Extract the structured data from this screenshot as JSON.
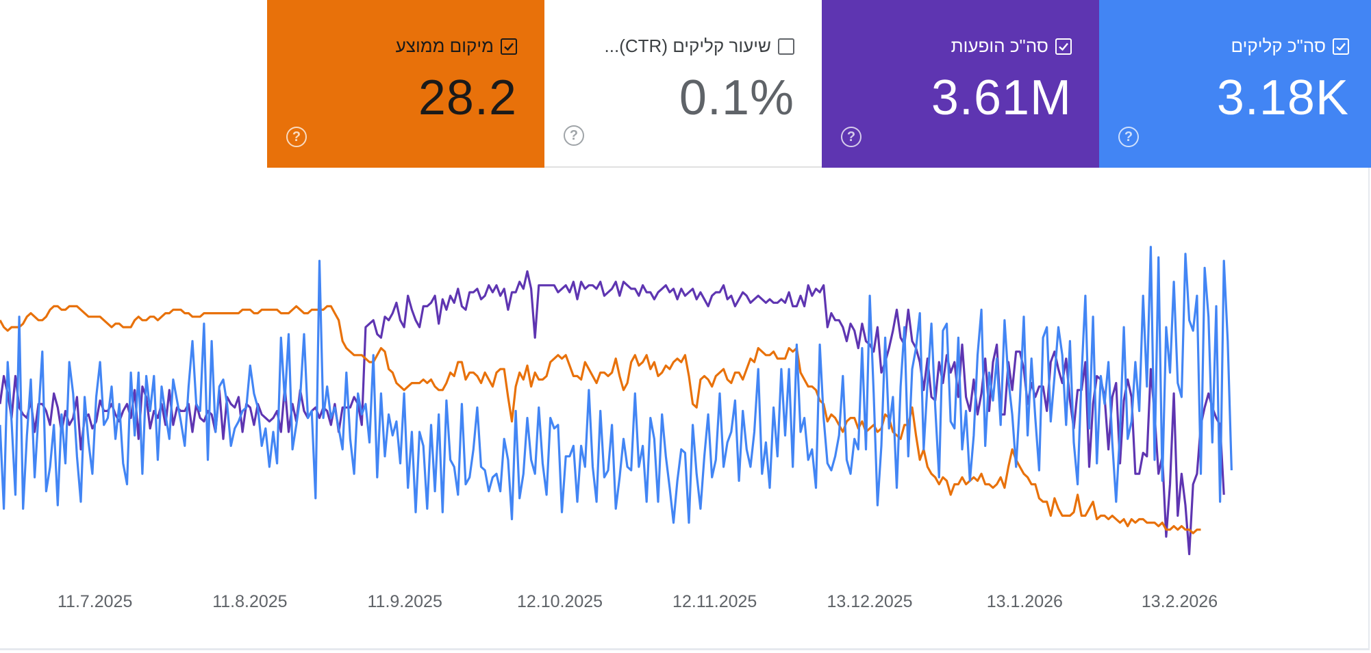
{
  "metrics": [
    {
      "label": "מיקום ממוצע",
      "value": "28.2",
      "checked": true,
      "color": "#e8710a"
    },
    {
      "label": "שיעור קליקים (CTR)...",
      "value": "0.1%",
      "checked": false,
      "color": "#ffffff"
    },
    {
      "label": "סה\"כ הופעות",
      "value": "3.61M",
      "checked": true,
      "color": "#5e35b1"
    },
    {
      "label": "סה\"כ קליקים",
      "value": "3.18K",
      "checked": true,
      "color": "#4285f4"
    }
  ],
  "chart_data": {
    "type": "line",
    "x_axis_type": "date",
    "x_range": [
      "2025-06-22",
      "2026-03-10"
    ],
    "x_tick_labels": [
      "11.7.2025",
      "11.8.2025",
      "11.9.2025",
      "12.10.2025",
      "12.11.2025",
      "13.12.2025",
      "13.1.2026",
      "13.2.2026"
    ],
    "grid": false,
    "legend": "metric cards above chart",
    "series": [
      {
        "name": "סה\"כ הופעות",
        "color": "#5e35b1",
        "values": [
          48,
          56,
          51,
          44,
          56,
          47,
          45,
          44,
          49,
          40,
          48,
          48,
          46,
          42,
          51,
          47,
          40,
          46,
          42,
          44,
          50,
          35,
          44,
          45,
          41,
          43,
          49,
          46,
          46,
          48,
          45,
          43,
          46,
          48,
          44,
          52,
          38,
          53,
          50,
          41,
          46,
          44,
          48,
          42,
          52,
          42,
          47,
          46,
          46,
          48,
          40,
          48,
          44,
          43,
          46,
          45,
          40,
          52,
          38,
          50,
          48,
          47,
          50,
          40,
          48,
          47,
          42,
          48,
          45,
          44,
          43,
          44,
          46,
          40,
          53,
          40,
          48,
          43,
          52,
          46,
          44,
          46,
          47,
          44,
          47,
          46,
          42,
          48,
          40,
          47,
          47,
          47,
          50,
          48,
          42,
          70,
          71,
          72,
          68,
          67,
          73,
          72,
          74,
          77,
          72,
          70,
          79,
          75,
          72,
          70,
          76,
          76,
          77,
          79,
          71,
          78,
          75,
          79,
          77,
          81,
          76,
          75,
          80,
          80,
          81,
          78,
          79,
          82,
          80,
          82,
          79,
          81,
          75,
          80,
          80,
          83,
          81,
          86,
          81,
          67,
          82,
          82,
          82,
          82,
          82,
          80,
          81,
          82,
          80,
          83,
          78,
          83,
          81,
          82,
          82,
          81,
          83,
          79,
          80,
          81,
          83,
          79,
          83,
          82,
          81,
          81,
          79,
          82,
          80,
          80,
          78,
          80,
          81,
          82,
          80,
          81,
          78,
          81,
          79,
          80,
          81,
          78,
          80,
          78,
          76,
          79,
          80,
          80,
          82,
          78,
          79,
          76,
          78,
          80,
          79,
          77,
          78,
          79,
          78,
          77,
          78,
          77,
          77,
          78,
          77,
          80,
          76,
          76,
          79,
          76,
          82,
          79,
          81,
          80,
          82,
          70,
          74,
          72,
          72,
          70,
          66,
          71,
          69,
          64,
          71,
          66,
          65,
          63,
          70,
          57,
          60,
          64,
          69,
          75,
          67,
          65,
          75,
          66,
          64,
          60,
          52,
          61,
          50,
          49,
          60,
          54,
          62,
          57,
          60,
          50,
          65,
          50,
          46,
          55,
          45,
          51,
          61,
          46,
          60,
          65,
          45,
          45,
          60,
          52,
          63,
          63,
          58,
          48,
          54,
          50,
          53,
          53,
          46,
          60,
          63,
          58,
          54,
          61,
          49,
          41,
          52,
          52,
          60,
          30,
          48,
          56,
          55,
          50,
          35,
          50,
          54,
          31,
          49,
          55,
          50,
          28,
          28,
          34,
          33,
          58,
          45,
          28,
          33,
          10,
          25,
          51,
          16,
          28,
          19,
          5,
          25,
          28,
          42,
          47,
          51,
          47,
          44,
          42,
          22
        ],
        "x_start": "2025-06-22",
        "x_step_days": 0.77
      },
      {
        "name": "מיקום ממוצע",
        "color": "#e8710a",
        "values": [
          72,
          70,
          69,
          70,
          70,
          70,
          71,
          73,
          74,
          73,
          72,
          72,
          73,
          75,
          76,
          76,
          75,
          75,
          76,
          76,
          76,
          75,
          74,
          73,
          73,
          73,
          73,
          72,
          71,
          70,
          71,
          71,
          70,
          70,
          70,
          72,
          73,
          72,
          72,
          73,
          73,
          72,
          73,
          74,
          74,
          75,
          75,
          75,
          74,
          74,
          73,
          73,
          73,
          74,
          74,
          74,
          74,
          74,
          74,
          74,
          74,
          74,
          74,
          75,
          75,
          75,
          74,
          74,
          75,
          75,
          75,
          75,
          75,
          74,
          74,
          74,
          75,
          76,
          75,
          74,
          74,
          75,
          75,
          75,
          75,
          76,
          76,
          74,
          72,
          66,
          64,
          63,
          62,
          62,
          62,
          61,
          60,
          60,
          62,
          64,
          63,
          58,
          57,
          54,
          53,
          52,
          53,
          54,
          54,
          54,
          55,
          54,
          55,
          53,
          52,
          52,
          54,
          57,
          56,
          60,
          60,
          55,
          57,
          57,
          56,
          54,
          57,
          55,
          53,
          57,
          58,
          58,
          50,
          43,
          53,
          57,
          55,
          59,
          53,
          57,
          55,
          55,
          56,
          60,
          61,
          62,
          61,
          62,
          59,
          56,
          56,
          55,
          60,
          58,
          56,
          54,
          57,
          57,
          56,
          57,
          61,
          56,
          52,
          54,
          60,
          62,
          59,
          60,
          62,
          58,
          60,
          56,
          57,
          59,
          58,
          60,
          61,
          60,
          62,
          56,
          48,
          47,
          55,
          56,
          55,
          53,
          56,
          57,
          58,
          55,
          54,
          57,
          57,
          55,
          58,
          61,
          60,
          64,
          63,
          62,
          62,
          63,
          61,
          61,
          61,
          64,
          63,
          64,
          57,
          55,
          53,
          53,
          52,
          49,
          48,
          43,
          45,
          44,
          42,
          40,
          43,
          44,
          44,
          41,
          43,
          40,
          41,
          42,
          40,
          41,
          45,
          44,
          40,
          39,
          38,
          42,
          42,
          47,
          39,
          32,
          35,
          30,
          28,
          27,
          25,
          27,
          26,
          22,
          25,
          25,
          27,
          25,
          26,
          27,
          26,
          28,
          25,
          25,
          24,
          25,
          27,
          24,
          30,
          35,
          32,
          30,
          28,
          27,
          25,
          25,
          21,
          20,
          20,
          16,
          21,
          18,
          16,
          16,
          16,
          17,
          22,
          16,
          16,
          18,
          20,
          15,
          16,
          16,
          15,
          16,
          15,
          14,
          15,
          13,
          15,
          14,
          15,
          15,
          14,
          14,
          14,
          13,
          14,
          12,
          12,
          13,
          12,
          13,
          12,
          12,
          11,
          12,
          12
        ],
        "x_start": "2025-06-22",
        "x_step_days": 0.77
      },
      {
        "name": "סה\"כ קליקים",
        "color": "#4285f4",
        "values": [
          42,
          18,
          60,
          43,
          22,
          73,
          18,
          39,
          55,
          27,
          45,
          63,
          23,
          30,
          42,
          19,
          45,
          31,
          60,
          51,
          33,
          20,
          50,
          37,
          28,
          50,
          60,
          42,
          44,
          53,
          38,
          48,
          31,
          25,
          57,
          39,
          57,
          28,
          56,
          46,
          56,
          32,
          53,
          45,
          38,
          55,
          49,
          43,
          36,
          53,
          66,
          48,
          46,
          71,
          32,
          66,
          40,
          53,
          55,
          48,
          36,
          41,
          43,
          46,
          47,
          59,
          51,
          47,
          36,
          41,
          30,
          40,
          31,
          67,
          49,
          68,
          35,
          42,
          50,
          68,
          44,
          46,
          21,
          89,
          44,
          53,
          44,
          47,
          41,
          35,
          57,
          38,
          28,
          51,
          45,
          48,
          37,
          62,
          27,
          51,
          33,
          45,
          39,
          43,
          31,
          51,
          24,
          40,
          17,
          40,
          36,
          18,
          42,
          23,
          45,
          17,
          49,
          32,
          30,
          22,
          48,
          25,
          27,
          35,
          47,
          30,
          29,
          23,
          27,
          28,
          23,
          38,
          32,
          15,
          46,
          21,
          28,
          44,
          32,
          28,
          47,
          31,
          22,
          44,
          41,
          42,
          17,
          33,
          33,
          36,
          20,
          36,
          30,
          52,
          30,
          20,
          46,
          27,
          29,
          42,
          18,
          27,
          38,
          30,
          29,
          51,
          30,
          36,
          20,
          44,
          38,
          20,
          45,
          33,
          24,
          14,
          26,
          35,
          34,
          14,
          42,
          28,
          18,
          33,
          45,
          27,
          32,
          51,
          30,
          37,
          40,
          49,
          26,
          46,
          35,
          30,
          40,
          58,
          28,
          37,
          24,
          47,
          33,
          58,
          39,
          58,
          30,
          65,
          40,
          44,
          32,
          35,
          24,
          65,
          44,
          31,
          29,
          33,
          39,
          56,
          32,
          28,
          38,
          35,
          64,
          35,
          79,
          51,
          19,
          36,
          67,
          41,
          50,
          24,
          53,
          70,
          33,
          58,
          64,
          74,
          35,
          54,
          71,
          47,
          27,
          69,
          71,
          43,
          41,
          67,
          35,
          46,
          26,
          39,
          62,
          75,
          36,
          57,
          49,
          61,
          42,
          72,
          55,
          45,
          30,
          49,
          73,
          39,
          61,
          44,
          29,
          67,
          70,
          43,
          56,
          70,
          62,
          42,
          66,
          37,
          25,
          56,
          79,
          41,
          73,
          31,
          56,
          48,
          60,
          37,
          20,
          40,
          70,
          38,
          43,
          60,
          46,
          79,
          53,
          93,
          32,
          90,
          26,
          70,
          57,
          83,
          54,
          50,
          91,
          72,
          69,
          79,
          28,
          87,
          73,
          37,
          76,
          20,
          89,
          66,
          29
        ],
        "x_start": "2025-06-22",
        "x_step_days": 0.77
      }
    ],
    "y_scale": "each series normalised to 0–100 (no y-axis shown)"
  }
}
